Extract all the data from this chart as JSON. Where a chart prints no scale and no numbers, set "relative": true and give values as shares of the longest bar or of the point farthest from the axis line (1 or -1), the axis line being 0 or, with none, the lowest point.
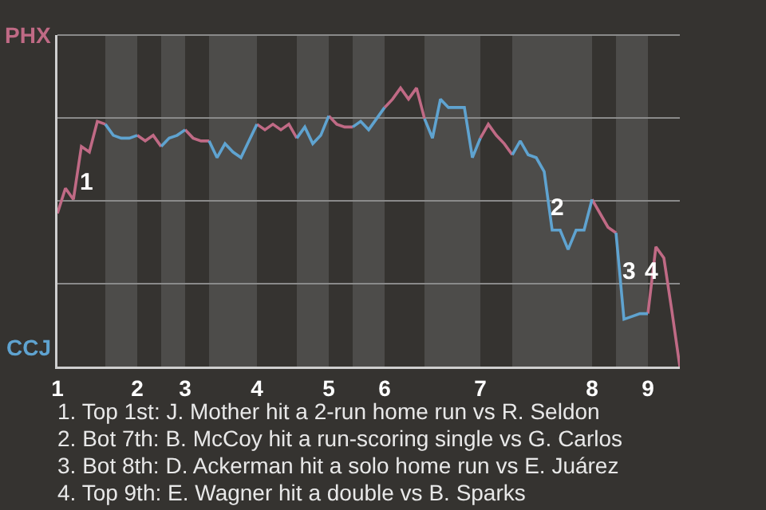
{
  "chart_data": {
    "type": "line",
    "relative": true,
    "marker": "none",
    "line_style": "solid",
    "grid": "y",
    "categories": [
      "1",
      null,
      null,
      null,
      null,
      null,
      null,
      null,
      null,
      null,
      "2",
      null,
      null,
      null,
      null,
      null,
      "3",
      null,
      null,
      null,
      null,
      null,
      null,
      null,
      null,
      "4",
      null,
      null,
      null,
      null,
      null,
      null,
      null,
      null,
      "5",
      null,
      null,
      null,
      null,
      null,
      null,
      "6",
      null,
      null,
      null,
      null,
      null,
      null,
      null,
      null,
      null,
      null,
      null,
      "7",
      null,
      null,
      null,
      null,
      null,
      null,
      null,
      null,
      null,
      null,
      null,
      null,
      null,
      "8",
      null,
      null,
      null,
      null,
      null,
      null,
      "9",
      null,
      null,
      null,
      null
    ],
    "series": [
      {
        "color": "#c06a85",
        "values": [
          0.55,
          0.64,
          0.6,
          0.79,
          0.77,
          0.88,
          0.87,
          null,
          null,
          null,
          0.83,
          0.81,
          0.83,
          0.79,
          null,
          null,
          0.85,
          0.82,
          0.81,
          0.81,
          null,
          null,
          null,
          null,
          null,
          0.87,
          0.85,
          0.87,
          0.85,
          0.87,
          0.82,
          null,
          null,
          null,
          0.9,
          0.87,
          0.86,
          0.86,
          null,
          null,
          null,
          0.93,
          0.96,
          1,
          0.96,
          1,
          0.89,
          null,
          null,
          null,
          null,
          null,
          null,
          0.82,
          0.87,
          0.83,
          0.8,
          0.76,
          null,
          null,
          null,
          null,
          null,
          null,
          null,
          null,
          null,
          0.6,
          0.55,
          0.5,
          0.48,
          null,
          null,
          null,
          0.19,
          0.43,
          0.39,
          0.2,
          0
        ]
      },
      {
        "color": "#5fa3d0",
        "values": [
          null,
          null,
          null,
          null,
          null,
          null,
          0.87,
          0.83,
          0.82,
          0.82,
          0.83,
          null,
          null,
          0.79,
          0.82,
          0.83,
          0.85,
          null,
          null,
          0.81,
          0.75,
          0.8,
          0.77,
          0.75,
          0.81,
          0.87,
          null,
          null,
          null,
          null,
          0.82,
          0.86,
          0.8,
          0.83,
          0.9,
          null,
          null,
          0.86,
          0.88,
          0.85,
          0.89,
          0.93,
          null,
          null,
          null,
          null,
          0.89,
          0.82,
          0.96,
          0.93,
          0.93,
          0.93,
          0.75,
          0.82,
          null,
          null,
          null,
          0.76,
          0.81,
          0.76,
          0.75,
          0.7,
          0.49,
          0.49,
          0.42,
          0.49,
          0.49,
          0.6,
          null,
          null,
          0.48,
          0.17,
          0.18,
          0.19,
          0.19,
          null,
          null,
          null,
          null
        ]
      }
    ],
    "annotations": [
      "1",
      "2",
      "3",
      "4",
      "PHX",
      "CCJ",
      "1. Top 1st: J. Mother hit a 2-run home run vs R. Seldon",
      "2. Bot 7th: B. McCoy hit a run-scoring single vs G. Carlos",
      "3. Bot 8th: D. Ackerman hit a solo home run vs E. Juárez",
      "4. Top 9th: E. Wagner hit a double vs B. Sparks"
    ]
  }
}
